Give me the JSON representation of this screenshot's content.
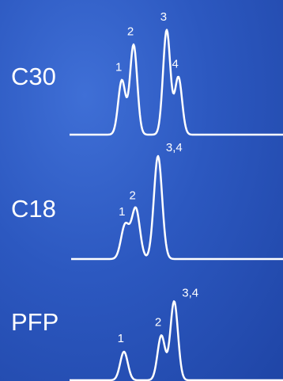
{
  "panels": [
    {
      "label": "C30"
    },
    {
      "label": "C18"
    },
    {
      "label": "PFP"
    }
  ],
  "chart_data": {
    "type": "line",
    "title": "",
    "xlabel": "",
    "ylabel": "",
    "grid": false,
    "series": [
      {
        "name": "C30",
        "peaks": [
          {
            "label": "1",
            "position": 0.245,
            "height": 0.52
          },
          {
            "label": "2",
            "position": 0.3,
            "height": 0.86
          },
          {
            "label": "3",
            "position": 0.455,
            "height": 1.0
          },
          {
            "label": "4",
            "position": 0.51,
            "height": 0.55
          }
        ]
      },
      {
        "name": "C18",
        "peaks": [
          {
            "label": "1",
            "position": 0.255,
            "height": 0.33
          },
          {
            "label": "2",
            "position": 0.305,
            "height": 0.49
          },
          {
            "label": "3,4",
            "position": 0.41,
            "height": 1.0
          }
        ]
      },
      {
        "name": "PFP",
        "peaks": [
          {
            "label": "1",
            "position": 0.255,
            "height": 0.3
          },
          {
            "label": "2",
            "position": 0.43,
            "height": 0.47
          },
          {
            "label": "3,4",
            "position": 0.49,
            "height": 0.83
          }
        ]
      }
    ],
    "line_color": "#ffffff",
    "background_color": "#2c58c0"
  }
}
